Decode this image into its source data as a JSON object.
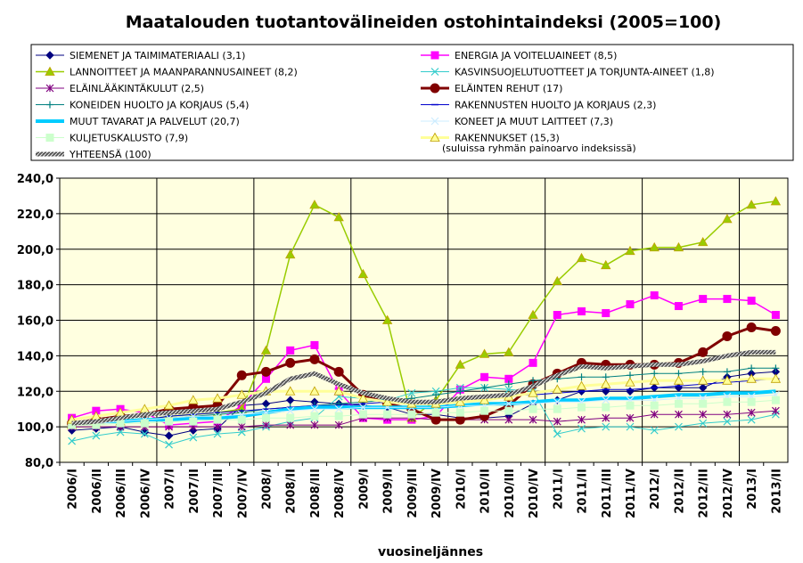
{
  "chart_data": {
    "type": "line",
    "title": "Maatalouden tuotantovälineiden ostohintaindeksi  (2005=100)",
    "xlabel": "vuosineljännes",
    "ylabel": "",
    "ylim": [
      80,
      240
    ],
    "yticks": [
      "80,0",
      "100,0",
      "120,0",
      "140,0",
      "160,0",
      "180,0",
      "200,0",
      "220,0",
      "240,0"
    ],
    "grid": true,
    "legend_position": "top",
    "legend_note": "(suluissa ryhmän painoarvo indeksissä)",
    "categories": [
      "2006/I",
      "2006/II",
      "2006/III",
      "2006/IV",
      "2007/I",
      "2007/II",
      "2007/III",
      "2007/IV",
      "2008/I",
      "2008/II",
      "2008/III",
      "2008/IV",
      "2009/I",
      "2009/II",
      "2009/III",
      "2009/IV",
      "2010/I",
      "2010/II",
      "2010/III",
      "2010/IV",
      "2011/I",
      "2011/II",
      "2011/III",
      "2011/IV",
      "2012/I",
      "2012/II",
      "2012/III",
      "2012/IV",
      "2013/I",
      "2013/II"
    ],
    "series": [
      {
        "name": "SIEMENET JA TAIMIMATERIAALI (3,1)",
        "color": "#000080",
        "marker": "diamond",
        "width": 1,
        "values": [
          98,
          99,
          100,
          97,
          95,
          98,
          99,
          112,
          113,
          115,
          114,
          113,
          112,
          111,
          107,
          107,
          105,
          105,
          106,
          113,
          115,
          120,
          120,
          120,
          122,
          122,
          122,
          128,
          130,
          131
        ]
      },
      {
        "name": "ENERGIA JA VOITELUAINEET (8,5)",
        "color": "#FF00FF",
        "marker": "square",
        "width": 1.5,
        "values": [
          105,
          109,
          110,
          108,
          101,
          102,
          103,
          112,
          127,
          143,
          146,
          120,
          105,
          104,
          104,
          106,
          121,
          128,
          127,
          136,
          163,
          165,
          164,
          169,
          174,
          168,
          172,
          172,
          171,
          163
        ]
      },
      {
        "name": "LANNOITTEET JA MAANPARANNUSAINEET (8,2)",
        "color": "#99CC00",
        "marker": "triangle",
        "width": 1.5,
        "values": [
          101,
          102,
          103,
          104,
          106,
          107,
          108,
          110,
          143,
          197,
          225,
          218,
          186,
          160,
          105,
          115,
          135,
          141,
          142,
          163,
          182,
          195,
          191,
          199,
          201,
          201,
          204,
          217,
          225,
          227
        ]
      },
      {
        "name": "KASVINSUOJELUTUOTTEET JA TORJUNTA-AINEET (1,8)",
        "color": "#33CCCC",
        "marker": "x",
        "width": 1,
        "values": [
          92,
          95,
          97,
          96,
          90,
          94,
          96,
          97,
          100,
          103,
          105,
          117,
          116,
          115,
          119,
          120,
          122,
          122,
          121,
          120,
          96,
          99,
          100,
          100,
          98,
          100,
          102,
          103,
          104,
          107
        ]
      },
      {
        "name": "ELÄINLÄÄKINTÄKULUT (2,5)",
        "color": "#800080",
        "marker": "star",
        "width": 1,
        "values": [
          100,
          100,
          100,
          100,
          100,
          100,
          100,
          100,
          101,
          101,
          101,
          101,
          105,
          105,
          105,
          104,
          104,
          104,
          104,
          104,
          103,
          104,
          105,
          105,
          107,
          107,
          107,
          107,
          108,
          109
        ]
      },
      {
        "name": "ELÄINTEN REHUT (17)",
        "color": "#800000",
        "marker": "circle",
        "width": 3,
        "values": [
          102,
          104,
          106,
          107,
          110,
          111,
          112,
          129,
          131,
          136,
          138,
          131,
          118,
          113,
          110,
          104,
          104,
          106,
          112,
          124,
          130,
          136,
          135,
          135,
          135,
          136,
          142,
          151,
          156,
          154
        ]
      },
      {
        "name": "KONEIDEN HUOLTO JA KORJAUS (5,4)",
        "color": "#008080",
        "marker": "plus",
        "width": 1,
        "values": [
          101,
          102,
          103,
          104,
          105,
          106,
          107,
          108,
          110,
          111,
          112,
          113,
          114,
          115,
          116,
          118,
          120,
          122,
          124,
          126,
          127,
          128,
          128,
          129,
          130,
          130,
          131,
          131,
          133,
          133
        ]
      },
      {
        "name": "RAKENNUSTEN HUOLTO JA KORJAUS (2,3)",
        "color": "#0000CC",
        "marker": "dash",
        "width": 1,
        "values": [
          101,
          102,
          103,
          104,
          106,
          107,
          108,
          109,
          110,
          111,
          112,
          112,
          113,
          114,
          114,
          115,
          116,
          117,
          118,
          118,
          119,
          120,
          121,
          121,
          122,
          123,
          124,
          125,
          126,
          127
        ]
      },
      {
        "name": "MUUT TAVARAT JA PALVELUT (20,7)",
        "color": "#00CCFF",
        "marker": "none",
        "width": 4,
        "values": [
          102,
          103,
          103,
          104,
          104,
          105,
          105,
          106,
          108,
          110,
          111,
          111,
          111,
          111,
          111,
          111,
          112,
          113,
          113,
          114,
          115,
          115,
          116,
          116,
          117,
          118,
          118,
          119,
          119,
          120
        ]
      },
      {
        "name": "KONEET JA MUUT LAITTEET (7,3)",
        "color": "#CCECFF",
        "marker": "x",
        "width": 1,
        "values": [
          101,
          102,
          103,
          104,
          105,
          106,
          106,
          107,
          108,
          109,
          110,
          110,
          111,
          111,
          111,
          111,
          112,
          112,
          113,
          113,
          114,
          114,
          115,
          115,
          115,
          116,
          116,
          117,
          117,
          118
        ]
      },
      {
        "name": "KULJETUSKALUSTO (7,9)",
        "color": "#CCFFCC",
        "marker": "square",
        "width": 1,
        "values": [
          101,
          101,
          102,
          102,
          103,
          103,
          104,
          104,
          105,
          105,
          106,
          106,
          107,
          107,
          107,
          108,
          108,
          109,
          109,
          110,
          110,
          111,
          111,
          112,
          112,
          113,
          113,
          114,
          114,
          115
        ]
      },
      {
        "name": "RAKENNUKSET (15,3)",
        "color": "#FFFF99",
        "marker": "triangle",
        "width": 3,
        "values": [
          104,
          106,
          108,
          110,
          112,
          115,
          116,
          118,
          120,
          120,
          120,
          120,
          116,
          114,
          113,
          113,
          114,
          115,
          117,
          119,
          121,
          123,
          124,
          125,
          126,
          126,
          126,
          126,
          127,
          127
        ]
      },
      {
        "name": "YHTEENSÄ (100)",
        "color": "#888888",
        "marker": "none",
        "width": 5,
        "hatched": true,
        "values": [
          102,
          103,
          105,
          107,
          108,
          109,
          110,
          114,
          119,
          127,
          130,
          124,
          119,
          116,
          114,
          114,
          116,
          117,
          118,
          123,
          129,
          134,
          133,
          134,
          135,
          135,
          137,
          140,
          142,
          142
        ]
      }
    ]
  }
}
